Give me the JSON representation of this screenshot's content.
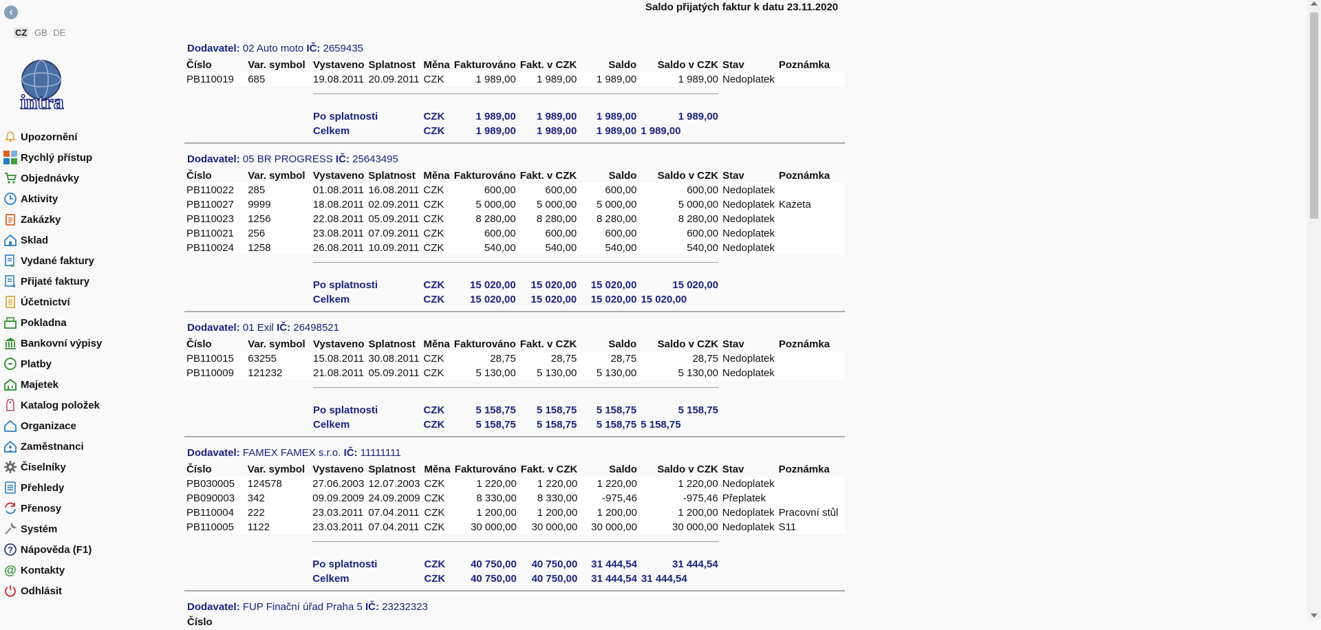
{
  "page": {
    "title": "Saldo přijatých faktur k datu 23.11.2020"
  },
  "lang": {
    "cz": "CZ",
    "gb": "GB",
    "de": "DE"
  },
  "logo_text": "intra",
  "menu": [
    {
      "label": "Upozornění",
      "icon": "bell-icon",
      "color": "#e0a030"
    },
    {
      "label": "Rychlý přístup",
      "icon": "tiles-icon",
      "color": "#e06020"
    },
    {
      "label": "Objednávky",
      "icon": "cart-icon",
      "color": "#2e8b2e"
    },
    {
      "label": "Aktivity",
      "icon": "clock-icon",
      "color": "#2a7fc0"
    },
    {
      "label": "Zakázky",
      "icon": "clipboard-icon",
      "color": "#e06020"
    },
    {
      "label": "Sklad",
      "icon": "house-icon",
      "color": "#2a7fc0"
    },
    {
      "label": "Vydané faktury",
      "icon": "invoice-out-icon",
      "color": "#2a7fc0"
    },
    {
      "label": "Přijaté faktury",
      "icon": "invoice-in-icon",
      "color": "#2a7fc0"
    },
    {
      "label": "Účetnictví",
      "icon": "ledger-icon",
      "color": "#e0a030"
    },
    {
      "label": "Pokladna",
      "icon": "cashbox-icon",
      "color": "#2e8b2e"
    },
    {
      "label": "Bankovní výpisy",
      "icon": "bank-icon",
      "color": "#2e8b2e"
    },
    {
      "label": "Platby",
      "icon": "coin-icon",
      "color": "#2e8b2e"
    },
    {
      "label": "Majetek",
      "icon": "building-icon",
      "color": "#2e8b2e"
    },
    {
      "label": "Katalog položek",
      "icon": "tag-icon",
      "color": "#c05080"
    },
    {
      "label": "Organizace",
      "icon": "org-house-icon",
      "color": "#2a7fc0"
    },
    {
      "label": "Zaměstnanci",
      "icon": "person-house-icon",
      "color": "#2a7fc0"
    },
    {
      "label": "Číselníky",
      "icon": "gear-icon",
      "color": "#666666"
    },
    {
      "label": "Přehledy",
      "icon": "list-icon",
      "color": "#2a7fc0"
    },
    {
      "label": "Přenosy",
      "icon": "sync-icon",
      "color": "#c03030"
    },
    {
      "label": "Systém",
      "icon": "wrench-icon",
      "color": "#888888"
    },
    {
      "label": "Nápověda (F1)",
      "icon": "help-icon",
      "color": "#1a237e"
    },
    {
      "label": "Kontakty",
      "icon": "at-icon",
      "color": "#2e8b2e"
    },
    {
      "label": "Odhlásit",
      "icon": "power-icon",
      "color": "#d02020"
    }
  ],
  "table_headers": [
    "Číslo",
    "Var. symbol",
    "Vystaveno",
    "Splatnost",
    "Měna",
    "Fakturováno",
    "Fakt. v CZK",
    "Saldo",
    "Saldo v CZK",
    "Stav",
    "Poznámka"
  ],
  "labels": {
    "supplier": "Dodavatel:",
    "ic": "IČ:",
    "po_splatnosti": "Po splatnosti",
    "celkem": "Celkem"
  },
  "suppliers": [
    {
      "name": "02 Auto moto",
      "ic": "2659435",
      "rows": [
        [
          "PB110019",
          "685",
          "19.08.2011",
          "20.09.2011",
          "CZK",
          "1 989,00",
          "1 989,00",
          "1 989,00",
          "1 989,00",
          "Nedoplatek",
          ""
        ]
      ],
      "po_splatnosti": {
        "currency": "CZK",
        "fakturovano": "1 989,00",
        "fakt_czk": "1 989,00",
        "saldo": "1 989,00",
        "saldo_czk": "1 989,00"
      },
      "celkem": {
        "currency": "CZK",
        "fakturovano": "1 989,00",
        "fakt_czk": "1 989,00",
        "saldo": "1 989,00",
        "saldo_czk": "1 989,00"
      }
    },
    {
      "name": "05 BR PROGRESS",
      "ic": "25643495",
      "rows": [
        [
          "PB110022",
          "285",
          "01.08.2011",
          "16.08.2011",
          "CZK",
          "600,00",
          "600,00",
          "600,00",
          "600,00",
          "Nedoplatek",
          ""
        ],
        [
          "PB110027",
          "9999",
          "18.08.2011",
          "02.09.2011",
          "CZK",
          "5 000,00",
          "5 000,00",
          "5 000,00",
          "5 000,00",
          "Nedoplatek",
          "Kazeta"
        ],
        [
          "PB110023",
          "1256",
          "22.08.2011",
          "05.09.2011",
          "CZK",
          "8 280,00",
          "8 280,00",
          "8 280,00",
          "8 280,00",
          "Nedoplatek",
          ""
        ],
        [
          "PB110021",
          "256",
          "23.08.2011",
          "07.09.2011",
          "CZK",
          "600,00",
          "600,00",
          "600,00",
          "600,00",
          "Nedoplatek",
          ""
        ],
        [
          "PB110024",
          "1258",
          "26.08.2011",
          "10.09.2011",
          "CZK",
          "540,00",
          "540,00",
          "540,00",
          "540,00",
          "Nedoplatek",
          ""
        ]
      ],
      "po_splatnosti": {
        "currency": "CZK",
        "fakturovano": "15 020,00",
        "fakt_czk": "15 020,00",
        "saldo": "15 020,00",
        "saldo_czk": "15 020,00"
      },
      "celkem": {
        "currency": "CZK",
        "fakturovano": "15 020,00",
        "fakt_czk": "15 020,00",
        "saldo": "15 020,00",
        "saldo_czk": "15 020,00"
      }
    },
    {
      "name": "01 Exil",
      "ic": "26498521",
      "rows": [
        [
          "PB110015",
          "63255",
          "15.08.2011",
          "30.08.2011",
          "CZK",
          "28,75",
          "28,75",
          "28,75",
          "28,75",
          "Nedoplatek",
          ""
        ],
        [
          "PB110009",
          "121232",
          "21.08.2011",
          "05.09.2011",
          "CZK",
          "5 130,00",
          "5 130,00",
          "5 130,00",
          "5 130,00",
          "Nedoplatek",
          ""
        ]
      ],
      "po_splatnosti": {
        "currency": "CZK",
        "fakturovano": "5 158,75",
        "fakt_czk": "5 158,75",
        "saldo": "5 158,75",
        "saldo_czk": "5 158,75"
      },
      "celkem": {
        "currency": "CZK",
        "fakturovano": "5 158,75",
        "fakt_czk": "5 158,75",
        "saldo": "5 158,75",
        "saldo_czk": "5 158,75"
      }
    },
    {
      "name": "FAMEX FAMEX s.r.o.",
      "ic": "11111111",
      "rows": [
        [
          "PB030005",
          "124578",
          "27.06.2003",
          "12.07.2003",
          "CZK",
          "1 220,00",
          "1 220,00",
          "1 220,00",
          "1 220,00",
          "Nedoplatek",
          ""
        ],
        [
          "PB090003",
          "342",
          "09.09.2009",
          "24.09.2009",
          "CZK",
          "8 330,00",
          "8 330,00",
          "-975,46",
          "-975,46",
          "Přeplatek",
          ""
        ],
        [
          "PB110004",
          "222",
          "23.03.2011",
          "07.04.2011",
          "CZK",
          "1 200,00",
          "1 200,00",
          "1 200,00",
          "1 200,00",
          "Nedoplatek",
          "Pracovní stůl"
        ],
        [
          "PB110005",
          "1122",
          "23.03.2011",
          "07.04.2011",
          "CZK",
          "30 000,00",
          "30 000,00",
          "30 000,00",
          "30 000,00",
          "Nedoplatek",
          "S11"
        ]
      ],
      "po_splatnosti": {
        "currency": "CZK",
        "fakturovano": "40 750,00",
        "fakt_czk": "40 750,00",
        "saldo": "31 444,54",
        "saldo_czk": "31 444,54"
      },
      "celkem": {
        "currency": "CZK",
        "fakturovano": "40 750,00",
        "fakt_czk": "40 750,00",
        "saldo": "31 444,54",
        "saldo_czk": "31 444,54"
      }
    },
    {
      "name": "FUP Finační úřad Praha 5",
      "ic": "23232323",
      "rows": [],
      "partial": true
    }
  ]
}
